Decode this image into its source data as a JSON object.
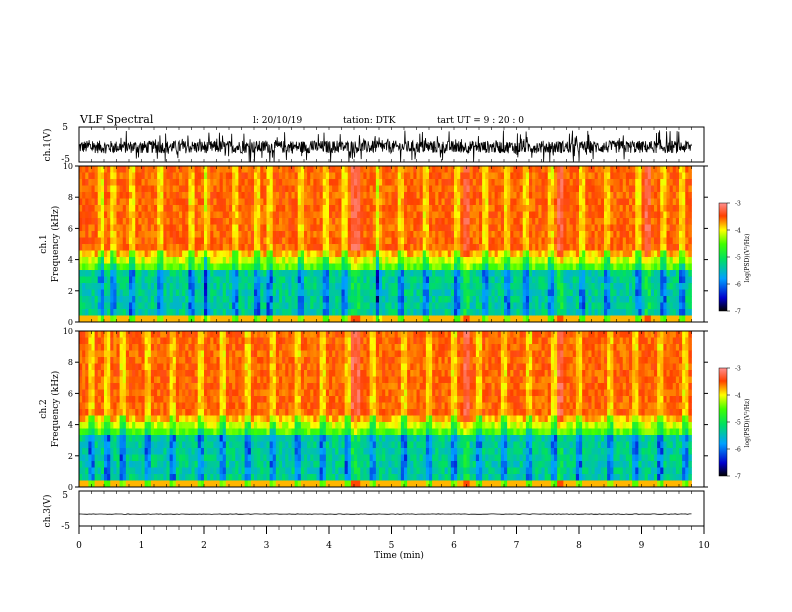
{
  "header": {
    "title": "VLF Spectral",
    "date": "l: 20/10/19",
    "station": "tation: DTK",
    "start": "tart UT =  9 : 20 : 0"
  },
  "chart_data": [
    {
      "type": "line",
      "ylabel": "ch.1(V)",
      "ylim": [
        -5,
        5
      ],
      "yticks": [
        5,
        -5
      ],
      "xlim": [
        0,
        10
      ],
      "color": "#000000",
      "baseline": -0.7,
      "amplitude": 3.0
    },
    {
      "type": "heatmap",
      "ylabel": "ch.1 Frequency (kHz)",
      "ylim": [
        0,
        10
      ],
      "yticks": [
        0,
        2,
        4,
        6,
        8,
        10
      ],
      "xlim": [
        0,
        9.8
      ],
      "colorbar": {
        "label": "log(PSD)(V²/Hz)",
        "range": [
          -7,
          -3
        ],
        "ticks": [
          -3,
          -4,
          -5,
          -6,
          -7
        ]
      },
      "dark_blue_stripe_times_min": [
        0.36,
        0.55,
        0.85,
        1.3,
        1.8,
        2.03,
        2.5,
        2.85,
        3.05,
        3.55,
        3.95,
        4.25,
        4.78,
        5.15,
        5.55,
        6.05,
        6.5,
        6.85,
        7.15,
        7.55,
        8.05,
        8.45,
        8.95,
        9.35,
        9.65
      ],
      "white_bright_stripe_times_min": [
        4.4,
        4.45,
        6.2,
        7.7,
        9.1
      ]
    },
    {
      "type": "heatmap",
      "ylabel": "ch.2 Frequency (kHz)",
      "ylim": [
        0,
        10
      ],
      "yticks": [
        0,
        2,
        4,
        6,
        8,
        10
      ],
      "xlim": [
        0,
        9.8
      ],
      "colorbar": {
        "label": "log(PSD)(V²/Hz)",
        "range": [
          -7,
          -3
        ],
        "ticks": [
          -3,
          -4,
          -5,
          -6,
          -7
        ]
      },
      "dark_blue_stripe_times_min": [
        0.2,
        0.45,
        0.7,
        1.1,
        1.5,
        1.95,
        2.3,
        2.7,
        3.1,
        3.5,
        3.9,
        4.3,
        4.7,
        5.2,
        5.6,
        6.0,
        6.4,
        6.8,
        7.2,
        7.6,
        8.0,
        8.5,
        8.9,
        9.3,
        9.7
      ],
      "white_bright_stripe_times_min": [
        4.4,
        4.45,
        6.2,
        7.7
      ]
    },
    {
      "type": "line",
      "ylabel": "ch.3(V)",
      "ylim": [
        -5,
        5
      ],
      "yticks": [
        5,
        -5
      ],
      "xlim": [
        0,
        10
      ],
      "color": "#000000",
      "baseline": -1.6,
      "amplitude": 0.15
    }
  ],
  "x_axis": {
    "label": "Time (min)",
    "ticks": [
      0,
      1,
      2,
      3,
      4,
      5,
      6,
      7,
      8,
      9,
      10
    ],
    "range": [
      0,
      10
    ]
  }
}
